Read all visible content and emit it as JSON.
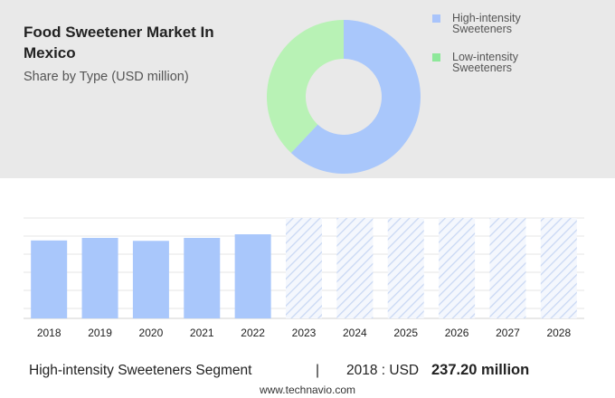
{
  "chart_data": [
    {
      "type": "pie",
      "title": "Food Sweetener Market In Mexico",
      "subtitle": "Share by Type (USD million)",
      "categories": [
        "High-intensity Sweeteners",
        "Low-intensity Sweeteners"
      ],
      "values": [
        62,
        38
      ],
      "colors": [
        "#a9c7fb",
        "#b8f2b5"
      ],
      "legend_colors": [
        "#a9c4fb",
        "#8ee89a"
      ],
      "donut": true
    },
    {
      "type": "bar",
      "categories": [
        "2018",
        "2019",
        "2020",
        "2021",
        "2022",
        "2023",
        "2024",
        "2025",
        "2026",
        "2027",
        "2028"
      ],
      "values": [
        237.2,
        245,
        236,
        245,
        256,
        null,
        null,
        null,
        null,
        null,
        null
      ],
      "color": "#a9c7fb",
      "grid": true
    }
  ],
  "footer": {
    "segment": "High-intensity Sweeteners Segment",
    "divider": "|",
    "year_label": "2018 : USD",
    "value_label": "237.20 million",
    "site": "www.technavio.com"
  }
}
